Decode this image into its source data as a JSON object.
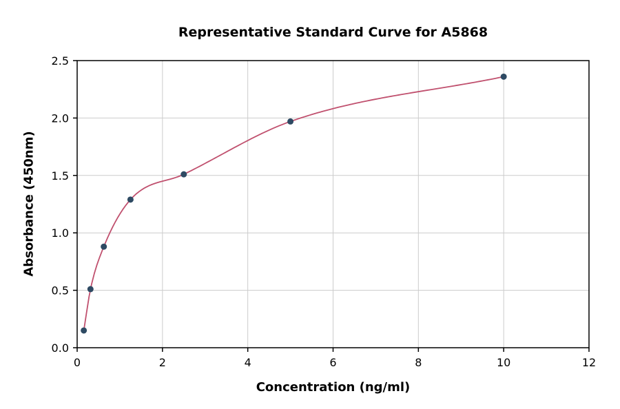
{
  "chart_data": {
    "type": "scatter",
    "title": "Representative Standard Curve for A5868",
    "xlabel": "Concentration (ng/ml)",
    "ylabel": "Absorbance (450nm)",
    "xlim": [
      0,
      12
    ],
    "ylim": [
      0,
      2.5
    ],
    "xticks": [
      0,
      2,
      4,
      6,
      8,
      10,
      12
    ],
    "xtick_labels": [
      "0",
      "2",
      "4",
      "6",
      "8",
      "10",
      "12"
    ],
    "yticks": [
      0.0,
      0.5,
      1.0,
      1.5,
      2.0,
      2.5
    ],
    "ytick_labels": [
      "0.0",
      "0.5",
      "1.0",
      "1.5",
      "2.0",
      "2.5"
    ],
    "grid": true,
    "legend": "none",
    "series": [
      {
        "name": "standard-points",
        "style": "scatter",
        "x": [
          0.156,
          0.3125,
          0.625,
          1.25,
          2.5,
          5,
          10
        ],
        "y": [
          0.15,
          0.51,
          0.88,
          1.29,
          1.51,
          1.97,
          2.36
        ]
      },
      {
        "name": "fit-curve",
        "style": "smooth-line-through-points",
        "x": [
          0.156,
          0.3125,
          0.625,
          1.25,
          2.5,
          5,
          10
        ],
        "y": [
          0.15,
          0.51,
          0.88,
          1.29,
          1.51,
          1.97,
          2.36
        ]
      }
    ],
    "colors": {
      "point": "#2e4a63",
      "curve": "#c0506e",
      "grid": "#cccccc",
      "axis": "#000000",
      "background": "#ffffff"
    }
  }
}
